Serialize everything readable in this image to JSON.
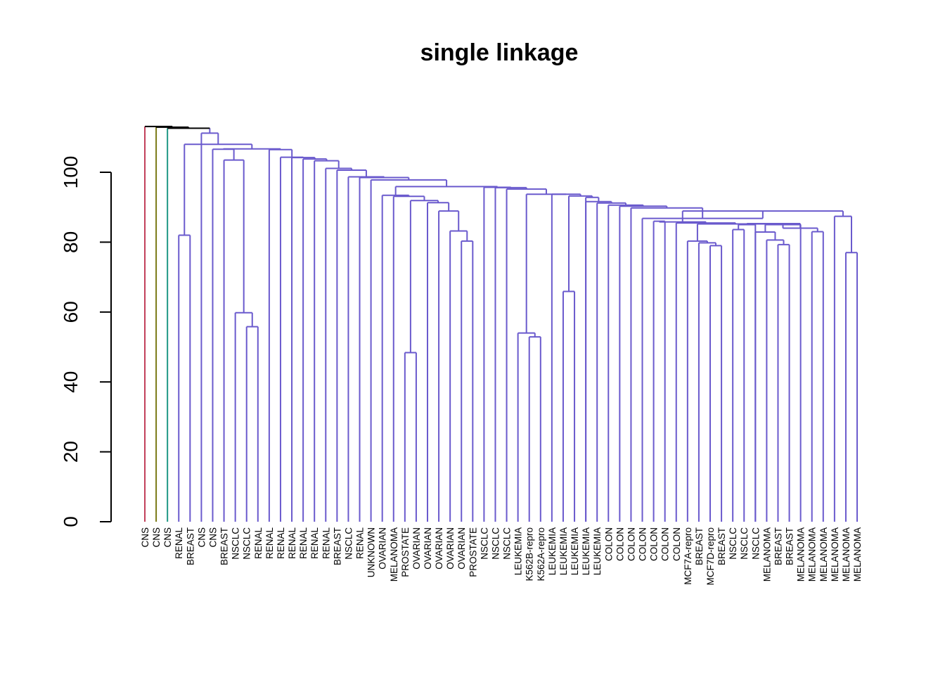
{
  "chart_data": {
    "type": "dendrogram",
    "title": "single linkage",
    "xlabel": "",
    "ylabel": "",
    "ylim": [
      0,
      120
    ],
    "y_ticks": [
      0,
      20,
      40,
      60,
      80,
      100
    ],
    "grid": false,
    "colors": [
      "#c2405b",
      "#7a7a16",
      "#1f9784",
      "#6a5acd"
    ],
    "leaves": [
      "CNS",
      "CNS",
      "CNS",
      "RENAL",
      "BREAST",
      "CNS",
      "CNS",
      "BREAST",
      "NSCLC",
      "NSCLC",
      "RENAL",
      "RENAL",
      "RENAL",
      "RENAL",
      "RENAL",
      "RENAL",
      "RENAL",
      "BREAST",
      "NSCLC",
      "RENAL",
      "UNKNOWN",
      "OVARIAN",
      "MELANOMA",
      "PROSTATE",
      "OVARIAN",
      "OVARIAN",
      "OVARIAN",
      "OVARIAN",
      "OVARIAN",
      "PROSTATE",
      "NSCLC",
      "NSCLC",
      "NSCLC",
      "LEUKEMIA",
      "K562B-repro",
      "K562A-repro",
      "LEUKEMIA",
      "LEUKEMIA",
      "LEUKEMIA",
      "LEUKEMIA",
      "LEUKEMIA",
      "COLON",
      "COLON",
      "COLON",
      "COLON",
      "COLON",
      "COLON",
      "COLON",
      "MCF7A-repro",
      "BREAST",
      "MCF7D-repro",
      "BREAST",
      "NSCLC",
      "NSCLC",
      "NSCLC",
      "MELANOMA",
      "BREAST",
      "BREAST",
      "MELANOMA",
      "MELANOMA",
      "MELANOMA",
      "MELANOMA",
      "MELANOMA",
      "MELANOMA"
    ],
    "leaf_colors": [
      0,
      1,
      2,
      3,
      3,
      3,
      3,
      3,
      3,
      3,
      3,
      3,
      3,
      3,
      3,
      3,
      3,
      3,
      3,
      3,
      3,
      3,
      3,
      3,
      3,
      3,
      3,
      3,
      3,
      3,
      3,
      3,
      3,
      3,
      3,
      3,
      3,
      3,
      3,
      3,
      3,
      3,
      3,
      3,
      3,
      3,
      3,
      3,
      3,
      3,
      3,
      3,
      3,
      3,
      3,
      3,
      3,
      3,
      3,
      3,
      3,
      3,
      3,
      3
    ],
    "merges": [
      {
        "id": "R1",
        "children": [
          "L3",
          "L4"
        ],
        "height": 82.0
      },
      {
        "id": "R2",
        "children": [
          "L9",
          "L10"
        ],
        "height": 55.8
      },
      {
        "id": "R3",
        "children": [
          "L8",
          "R2"
        ],
        "height": 59.8
      },
      {
        "id": "R4",
        "children": [
          "L7",
          "R3"
        ],
        "height": 103.5
      },
      {
        "id": "R5",
        "children": [
          "L6",
          "R4"
        ],
        "height": 106.6
      },
      {
        "id": "P1",
        "children": [
          "L23",
          "L24"
        ],
        "height": 48.4
      },
      {
        "id": "P2",
        "children": [
          "L28",
          "L29"
        ],
        "height": 80.3
      },
      {
        "id": "P3",
        "children": [
          "L27",
          "P2"
        ],
        "height": 83.2
      },
      {
        "id": "P4",
        "children": [
          "L26",
          "P3"
        ],
        "height": 88.9
      },
      {
        "id": "P5",
        "children": [
          "L25",
          "P4"
        ],
        "height": 91.3
      },
      {
        "id": "P6",
        "children": [
          "P1",
          "P5"
        ],
        "height": 91.9
      },
      {
        "id": "P7",
        "children": [
          "L22",
          "P6"
        ],
        "height": 93.1
      },
      {
        "id": "P8",
        "children": [
          "L21",
          "P7"
        ],
        "height": 93.4
      },
      {
        "id": "K1",
        "children": [
          "L34",
          "L35"
        ],
        "height": 52.9
      },
      {
        "id": "K2",
        "children": [
          "L33",
          "K1"
        ],
        "height": 54.0
      },
      {
        "id": "K3",
        "children": [
          "L37",
          "L38"
        ],
        "height": 65.9
      },
      {
        "id": "B1",
        "children": [
          "L56",
          "L57"
        ],
        "height": 79.3
      },
      {
        "id": "B2",
        "children": [
          "L55",
          "B1"
        ],
        "height": 80.6
      },
      {
        "id": "B3",
        "children": [
          "L54",
          "B2"
        ],
        "height": 82.9
      },
      {
        "id": "B4",
        "children": [
          "B3",
          "L58"
        ],
        "height": 85.0
      },
      {
        "id": "B5",
        "children": [
          "L59",
          "L60"
        ],
        "height": 83.0
      },
      {
        "id": "B6",
        "children": [
          "B4",
          "B5"
        ],
        "height": 84.0
      },
      {
        "id": "N1",
        "children": [
          "L52",
          "L53"
        ],
        "height": 83.6
      },
      {
        "id": "N2",
        "children": [
          "N1",
          "L54b"
        ],
        "height": 85.0
      },
      {
        "id": "N3",
        "children": [
          "N2",
          "B6"
        ],
        "height": 85.3
      },
      {
        "id": "Q1",
        "children": [
          "L50",
          "L51"
        ],
        "height": 79.0
      },
      {
        "id": "Q2",
        "children": [
          "L49",
          "Q1"
        ],
        "height": 79.8
      },
      {
        "id": "Q3",
        "children": [
          "L48",
          "Q2"
        ],
        "height": 80.3
      },
      {
        "id": "Q4",
        "children": [
          "Q3",
          "N3"
        ],
        "height": 85.2
      },
      {
        "id": "Q5",
        "children": [
          "L47",
          "Q4"
        ],
        "height": 85.5
      },
      {
        "id": "M1",
        "children": [
          "L62",
          "L63"
        ],
        "height": 77.0
      },
      {
        "id": "M2",
        "children": [
          "L61",
          "M1"
        ],
        "height": 87.4
      },
      {
        "id": "C1",
        "children": [
          "L45",
          "L46"
        ],
        "height": 86.0
      },
      {
        "id": "C2",
        "children": [
          "C1",
          "Q5"
        ],
        "height": 85.8
      },
      {
        "id": "C3",
        "children": [
          "C2",
          "M2"
        ],
        "height": 88.9
      },
      {
        "id": "C4",
        "children": [
          "L44",
          "C3"
        ],
        "height": 86.8
      },
      {
        "id": "C5",
        "children": [
          "L43",
          "C4"
        ],
        "height": 89.8
      },
      {
        "id": "C6",
        "children": [
          "L42",
          "C5"
        ],
        "height": 90.3
      },
      {
        "id": "C7",
        "children": [
          "L41",
          "C6"
        ],
        "height": 90.6
      },
      {
        "id": "C8",
        "children": [
          "L40",
          "C7"
        ],
        "height": 91.2
      },
      {
        "id": "C9",
        "children": [
          "L39",
          "C8"
        ],
        "height": 91.6
      },
      {
        "id": "C10",
        "children": [
          "L38b",
          "C9"
        ],
        "height": 92.8
      },
      {
        "id": "C11",
        "children": [
          "K3",
          "C10"
        ],
        "height": 93.2
      },
      {
        "id": "C12",
        "children": [
          "L36",
          "C11"
        ],
        "height": 93.7
      },
      {
        "id": "C13",
        "children": [
          "K2",
          "C12"
        ],
        "height": 93.7
      },
      {
        "id": "C14",
        "children": [
          "L32",
          "C13"
        ],
        "height": 95.2
      },
      {
        "id": "C15",
        "children": [
          "L31",
          "C14"
        ],
        "height": 95.6
      },
      {
        "id": "C16",
        "children": [
          "L30",
          "C15"
        ],
        "height": 95.7
      },
      {
        "id": "C17",
        "children": [
          "P8",
          "C16"
        ],
        "height": 95.9
      },
      {
        "id": "C18",
        "children": [
          "L20",
          "C17"
        ],
        "height": 97.8
      },
      {
        "id": "C19",
        "children": [
          "L19",
          "C18"
        ],
        "height": 98.5
      },
      {
        "id": "C20",
        "children": [
          "L18",
          "C19"
        ],
        "height": 98.7
      },
      {
        "id": "C21",
        "children": [
          "L17",
          "C20"
        ],
        "height": 100.6
      },
      {
        "id": "C22",
        "children": [
          "L16",
          "C21"
        ],
        "height": 101.1
      },
      {
        "id": "C23",
        "children": [
          "L15",
          "C22"
        ],
        "height": 103.3
      },
      {
        "id": "C24",
        "children": [
          "L14",
          "C23"
        ],
        "height": 103.8
      },
      {
        "id": "C25",
        "children": [
          "L13",
          "C24"
        ],
        "height": 104.2
      },
      {
        "id": "C26",
        "children": [
          "L12",
          "C25"
        ],
        "height": 104.3
      },
      {
        "id": "C27",
        "children": [
          "L11",
          "C26"
        ],
        "height": 106.5
      },
      {
        "id": "C28",
        "children": [
          "R5",
          "C27"
        ],
        "height": 106.7
      },
      {
        "id": "C29",
        "children": [
          "R1",
          "C28"
        ],
        "height": 108.0
      },
      {
        "id": "C30",
        "children": [
          "L5",
          "C29"
        ],
        "height": 111.2
      },
      {
        "id": "T1",
        "children": [
          "L2",
          "C30"
        ],
        "height": 112.6
      },
      {
        "id": "T2",
        "children": [
          "L1",
          "T1"
        ],
        "height": 112.9
      },
      {
        "id": "T3",
        "children": [
          "L0",
          "T2"
        ],
        "height": 113.1
      }
    ]
  }
}
